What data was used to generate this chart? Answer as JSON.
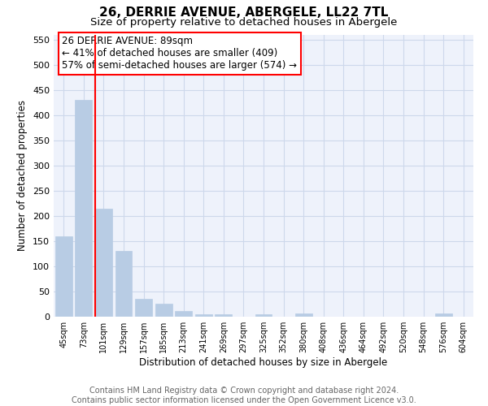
{
  "title": "26, DERRIE AVENUE, ABERGELE, LL22 7TL",
  "subtitle": "Size of property relative to detached houses in Abergele",
  "xlabel": "Distribution of detached houses by size in Abergele",
  "ylabel": "Number of detached properties",
  "bar_labels": [
    "45sqm",
    "73sqm",
    "101sqm",
    "129sqm",
    "157sqm",
    "185sqm",
    "213sqm",
    "241sqm",
    "269sqm",
    "297sqm",
    "325sqm",
    "352sqm",
    "380sqm",
    "408sqm",
    "436sqm",
    "464sqm",
    "492sqm",
    "520sqm",
    "548sqm",
    "576sqm",
    "604sqm"
  ],
  "bar_values": [
    160,
    430,
    215,
    130,
    35,
    25,
    12,
    5,
    5,
    0,
    5,
    0,
    6,
    0,
    0,
    0,
    0,
    0,
    0,
    6,
    0
  ],
  "bar_color": "#b8cce4",
  "bar_edge_color": "#b8cce4",
  "vline_color": "red",
  "vline_x_index": 1.57,
  "annotation_line1": "26 DERRIE AVENUE: 89sqm",
  "annotation_line2": "← 41% of detached houses are smaller (409)",
  "annotation_line3": "57% of semi-detached houses are larger (574) →",
  "annotation_box_color": "white",
  "annotation_box_edge": "red",
  "ylim": [
    0,
    560
  ],
  "yticks": [
    0,
    50,
    100,
    150,
    200,
    250,
    300,
    350,
    400,
    450,
    500,
    550
  ],
  "grid_color": "#cdd8eb",
  "bg_color": "#eef2fb",
  "footer": "Contains HM Land Registry data © Crown copyright and database right 2024.\nContains public sector information licensed under the Open Government Licence v3.0.",
  "title_fontsize": 11,
  "subtitle_fontsize": 9.5,
  "annotation_fontsize": 8.5,
  "footer_fontsize": 7,
  "ylabel_fontsize": 8.5,
  "xlabel_fontsize": 8.5,
  "ytick_fontsize": 8,
  "xtick_fontsize": 7
}
